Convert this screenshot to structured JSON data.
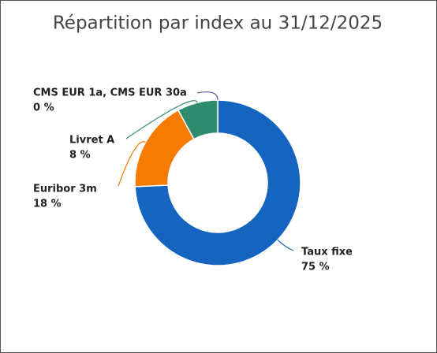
{
  "chart_data": {
    "type": "donut",
    "title": "Répartition par index au 31/12/2025",
    "categories": [
      "Taux fixe",
      "Euribor 3m",
      "Livret A",
      "CMS EUR 1a, CMS EUR 30a"
    ],
    "values": [
      75,
      18,
      8,
      0
    ],
    "value_labels": [
      "75 %",
      "18 %",
      "8 %",
      "0 %"
    ],
    "colors": [
      "#1565c0",
      "#f57c00",
      "#2e8b6e",
      "#6b5b95"
    ]
  }
}
